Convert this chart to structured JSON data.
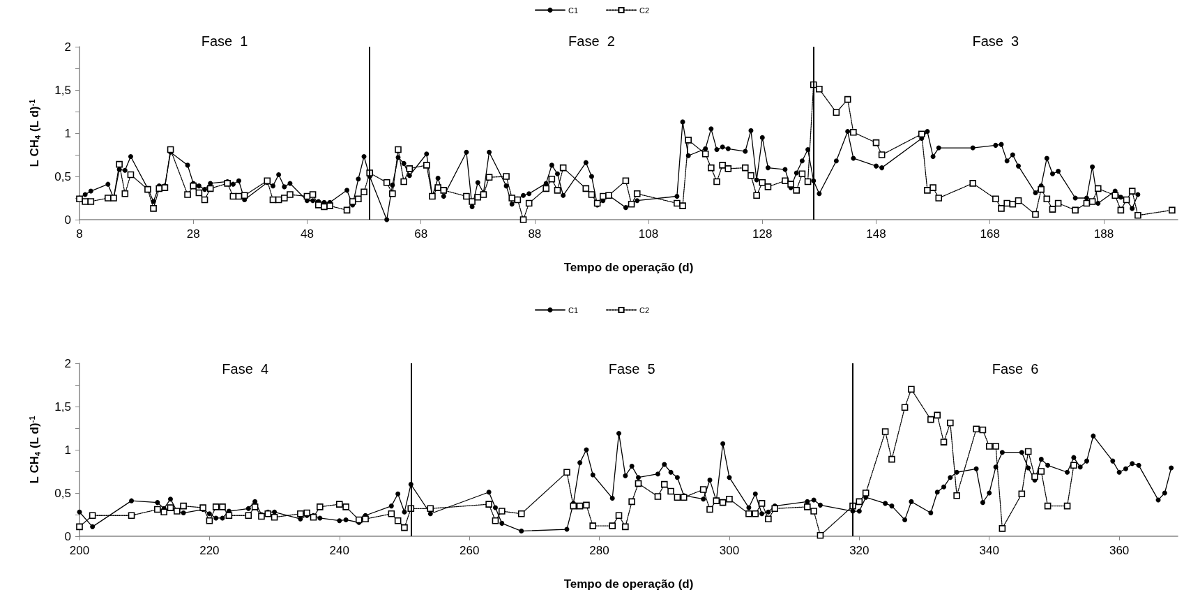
{
  "chart_data": [
    {
      "type": "line",
      "xlabel": "Tempo de operação (d)",
      "ylabel": "L CH$_{4}$ (L d)$^{-1}$",
      "legend": "top",
      "grid": false,
      "x": [
        8,
        9,
        10,
        13,
        14,
        15,
        16,
        17,
        20,
        21,
        22,
        23,
        24,
        27,
        28,
        29,
        30,
        31,
        34,
        35,
        36,
        37,
        41,
        42,
        43,
        44,
        45,
        48,
        49,
        50,
        51,
        52,
        55,
        56,
        57,
        58,
        59,
        62,
        63,
        64,
        65,
        66,
        69,
        70,
        71,
        72,
        76,
        77,
        78,
        79,
        80,
        83,
        84,
        85,
        86,
        87,
        90,
        91,
        92,
        93,
        97,
        98,
        99,
        100,
        101,
        104,
        105,
        106,
        113,
        114,
        115,
        118,
        119,
        120,
        121,
        122,
        125,
        126,
        127,
        128,
        129,
        132,
        133,
        134,
        135,
        136,
        137,
        138,
        141,
        143,
        144,
        148,
        149,
        156,
        157,
        158,
        159,
        165,
        169,
        170,
        171,
        172,
        173,
        176,
        177,
        178,
        179,
        180,
        183,
        185,
        186,
        187,
        190,
        191,
        192,
        193,
        194,
        200
      ],
      "series": [
        {
          "name": "C1",
          "color": "#000000",
          "marker": "circle",
          "line_style": "solid",
          "values": [
            0.25,
            0.29,
            0.33,
            0.41,
            0.25,
            0.58,
            0.57,
            0.73,
            0.36,
            0.21,
            0.39,
            0.39,
            0.78,
            0.63,
            0.42,
            0.39,
            0.35,
            0.42,
            0.44,
            0.41,
            0.45,
            0.23,
            0.43,
            0.39,
            0.52,
            0.38,
            0.42,
            0.22,
            0.22,
            0.21,
            0.2,
            0.2,
            0.34,
            0.17,
            0.47,
            0.73,
            0.5,
            0,
            0.4,
            0.72,
            0.65,
            0.51,
            0.76,
            0.27,
            0.48,
            0.27,
            0.78,
            0.15,
            0.43,
            0.31,
            0.78,
            0.39,
            0.18,
            0.24,
            0.28,
            0.3,
            0.42,
            0.63,
            0.53,
            0.28,
            0.66,
            0.5,
            0.17,
            0.22,
            0.28,
            0.14,
            0.19,
            0.22,
            0.27,
            1.13,
            0.74,
            0.82,
            1.05,
            0.81,
            0.84,
            0.82,
            0.79,
            1.03,
            0.46,
            0.95,
            0.6,
            0.58,
            0.37,
            0.54,
            0.68,
            0.81,
            0.45,
            0.3,
            0.68,
            1.02,
            0.71,
            0.62,
            0.6,
            0.94,
            1.02,
            0.73,
            0.83,
            0.83,
            0.86,
            0.87,
            0.68,
            0.75,
            0.62,
            0.31,
            0.39,
            0.71,
            0.53,
            0.56,
            0.25,
            0.25,
            0.61,
            0.19,
            0.33,
            0.26,
            0.23,
            0.13,
            0.29,
            null
          ]
        },
        {
          "name": "C2",
          "color": "#000000",
          "marker": "square",
          "line_style": "dotted",
          "values": [
            0.24,
            0.21,
            0.21,
            0.25,
            0.25,
            0.64,
            0.3,
            0.52,
            0.35,
            0.13,
            0.36,
            0.37,
            0.81,
            0.29,
            0.39,
            0.31,
            0.23,
            0.36,
            0.42,
            0.27,
            0.27,
            0.28,
            0.45,
            0.23,
            0.23,
            0.25,
            0.29,
            0.27,
            0.29,
            0.17,
            0.15,
            0.16,
            0.11,
            0.21,
            0.24,
            0.32,
            0.54,
            0.43,
            0.3,
            0.81,
            0.44,
            0.59,
            0.63,
            0.27,
            0.37,
            0.34,
            0.27,
            0.21,
            0.26,
            0.29,
            0.49,
            0.5,
            0.25,
            0.23,
            0,
            0.19,
            0.36,
            0.47,
            0.34,
            0.6,
            0.36,
            0.29,
            0.19,
            0.27,
            0.28,
            0.45,
            0.18,
            0.3,
            0.19,
            0.16,
            0.92,
            0.76,
            0.6,
            0.44,
            0.63,
            0.59,
            0.6,
            0.51,
            0.28,
            0.43,
            0.38,
            0.45,
            0.41,
            0.34,
            0.53,
            0.44,
            1.56,
            1.51,
            1.24,
            1.39,
            1.01,
            0.89,
            0.75,
            0.99,
            0.34,
            0.37,
            0.25,
            0.42,
            0.24,
            0.13,
            0.19,
            0.18,
            0.22,
            0.06,
            0.35,
            0.24,
            0.12,
            0.19,
            0.11,
            0.19,
            0.21,
            0.36,
            0.28,
            0.11,
            0.23,
            0.33,
            0.05,
            0.11
          ]
        }
      ],
      "xlim": [
        8,
        201
      ],
      "xticks": [
        8,
        28,
        48,
        68,
        88,
        108,
        128,
        148,
        168,
        188
      ],
      "ylim": [
        0,
        2
      ],
      "yticks": [
        0,
        {
          "value": 0.25,
          "label": null
        },
        {
          "value": 0.5,
          "label": "0,5"
        },
        {
          "value": 0.75,
          "label": null
        },
        1,
        {
          "value": 1.25,
          "label": null
        },
        {
          "value": 1.5,
          "label": "1,5"
        },
        {
          "value": 1.75,
          "label": null
        },
        2
      ],
      "ref_lines": [
        {
          "axis": "x",
          "value": 59
        },
        {
          "axis": "x",
          "value": 137
        }
      ],
      "annotations": [
        "Fase  1",
        "Fase  2",
        "Fase  3"
      ]
    },
    {
      "type": "line",
      "xlabel": "Tempo de operação (d)",
      "ylabel": "L CH$_{4}$ (L d)$^{-1}$",
      "legend": "top",
      "grid": false,
      "x": [
        200,
        202,
        208,
        212,
        213,
        214,
        215,
        216,
        219,
        220,
        221,
        222,
        223,
        226,
        227,
        228,
        229,
        230,
        234,
        235,
        236,
        237,
        240,
        241,
        243,
        244,
        248,
        249,
        250,
        251,
        254,
        263,
        264,
        265,
        268,
        275,
        276,
        277,
        278,
        279,
        282,
        283,
        284,
        285,
        286,
        289,
        290,
        291,
        292,
        293,
        296,
        297,
        298,
        299,
        300,
        303,
        304,
        305,
        306,
        307,
        312,
        313,
        314,
        319,
        320,
        321,
        324,
        325,
        327,
        328,
        331,
        332,
        333,
        334,
        335,
        338,
        339,
        340,
        341,
        342,
        345,
        346,
        347,
        348,
        349,
        352,
        353,
        354,
        355,
        356,
        359,
        360,
        361,
        362,
        363,
        366,
        367,
        368
      ],
      "series": [
        {
          "name": "C1",
          "color": "#000000",
          "marker": "circle",
          "line_style": "solid",
          "values": [
            0.28,
            0.11,
            0.41,
            0.39,
            0.32,
            0.43,
            0.29,
            0.27,
            0.31,
            0.26,
            0.21,
            0.21,
            0.29,
            0.32,
            0.4,
            0.25,
            0.28,
            0.28,
            0.2,
            0.24,
            0.24,
            0.21,
            0.18,
            0.19,
            0.16,
            0.24,
            0.35,
            0.49,
            0.28,
            0.6,
            0.26,
            0.51,
            0.33,
            0.15,
            0.06,
            0.08,
            0.38,
            0.85,
            1.0,
            0.71,
            0.44,
            1.19,
            0.7,
            0.81,
            0.68,
            0.72,
            0.83,
            0.74,
            0.68,
            0.47,
            0.43,
            0.65,
            0.41,
            1.07,
            0.68,
            0.33,
            0.49,
            0.26,
            0.28,
            0.35,
            0.4,
            0.42,
            0.36,
            0.29,
            0.29,
            0.45,
            0.38,
            0.35,
            0.19,
            0.4,
            0.27,
            0.51,
            0.57,
            0.68,
            0.74,
            0.78,
            0.39,
            0.5,
            0.8,
            0.97,
            0.97,
            0.79,
            0.65,
            0.89,
            0.82,
            0.74,
            0.91,
            0.8,
            0.87,
            1.16,
            0.87,
            0.74,
            0.78,
            0.84,
            0.82,
            0.42,
            0.5,
            0.79
          ]
        },
        {
          "name": "C2",
          "color": "#000000",
          "marker": "square",
          "line_style": "dotted",
          "values": [
            0.11,
            0.24,
            0.24,
            0.31,
            0.28,
            0.33,
            0.29,
            0.35,
            0.33,
            0.18,
            0.34,
            0.34,
            0.24,
            0.24,
            0.34,
            0.23,
            0.26,
            0.22,
            0.26,
            0.27,
            0.22,
            0.34,
            0.37,
            0.34,
            0.19,
            0.2,
            0.26,
            0.18,
            0.1,
            0.32,
            0.32,
            0.37,
            0.18,
            0.29,
            0.26,
            0.74,
            0.35,
            0.35,
            0.36,
            0.12,
            0.12,
            0.24,
            0.11,
            0.4,
            0.61,
            0.46,
            0.6,
            0.52,
            0.45,
            0.45,
            0.54,
            0.31,
            0.41,
            0.39,
            0.43,
            0.26,
            0.26,
            0.38,
            0.2,
            0.32,
            0.34,
            0.29,
            0.01,
            0.35,
            0.4,
            0.5,
            1.21,
            0.89,
            1.49,
            1.7,
            1.35,
            1.4,
            1.09,
            1.31,
            0.47,
            1.24,
            1.23,
            1.04,
            1.04,
            0.09,
            0.49,
            0.98,
            0.69,
            0.75,
            0.35,
            0.35,
            0.82,
            null,
            null,
            null,
            null,
            null,
            null,
            null,
            null,
            null,
            null,
            null
          ]
        }
      ],
      "xlim": [
        200,
        369
      ],
      "xticks": [
        200,
        220,
        240,
        260,
        280,
        300,
        320,
        340,
        360
      ],
      "ylim": [
        0,
        2
      ],
      "yticks": [
        0,
        {
          "value": 0.25,
          "label": null
        },
        {
          "value": 0.5,
          "label": "0,5"
        },
        {
          "value": 0.75,
          "label": null
        },
        1,
        {
          "value": 1.25,
          "label": null
        },
        {
          "value": 1.5,
          "label": "1,5"
        },
        {
          "value": 1.75,
          "label": null
        },
        2
      ],
      "ref_lines": [
        {
          "axis": "x",
          "value": 251
        },
        {
          "axis": "x",
          "value": 319
        }
      ],
      "annotations": [
        "Fase  4",
        "Fase  5",
        "Fase  6"
      ]
    }
  ]
}
